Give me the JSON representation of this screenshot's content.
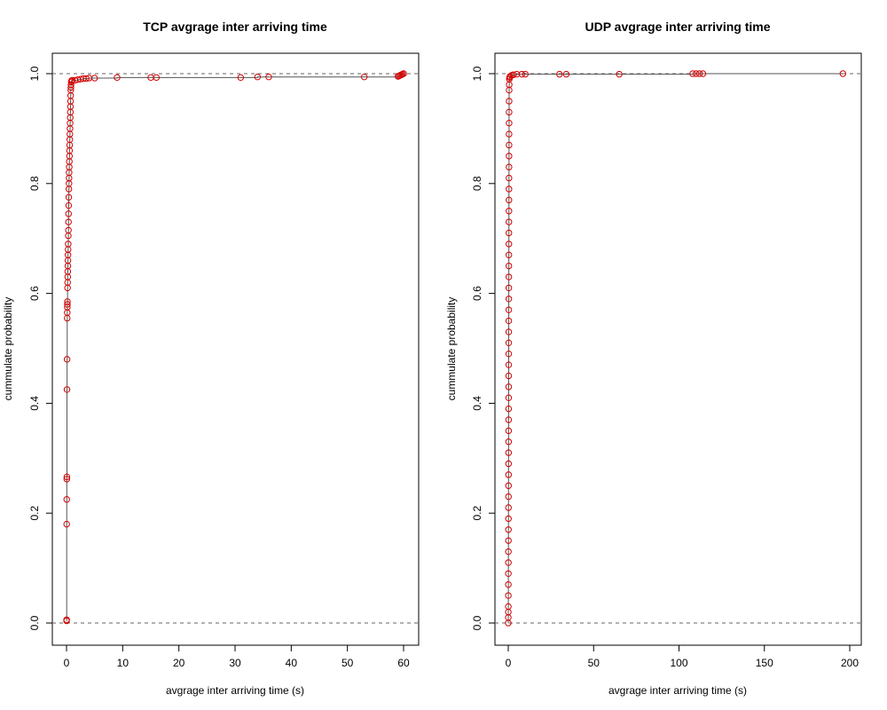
{
  "chart_data": [
    {
      "type": "scatter",
      "title": "TCP avgrage inter arriving time",
      "xlabel": "avgrage inter arriving time (s)",
      "ylabel": "cummulate probability",
      "xlim": [
        0,
        60
      ],
      "ylim": [
        0,
        1
      ],
      "x_ticks": [
        0,
        10,
        20,
        30,
        40,
        50,
        60
      ],
      "y_ticks": [
        0.0,
        0.2,
        0.4,
        0.6,
        0.8,
        1.0
      ],
      "x_tick_labels": [
        "0",
        "10",
        "20",
        "30",
        "40",
        "50",
        "60"
      ],
      "y_tick_labels": [
        "0.0",
        "0.2",
        "0.4",
        "0.6",
        "0.8",
        "1.0"
      ],
      "reference_lines_y": [
        0,
        1
      ],
      "series_color": "#d40000",
      "line_color": "#555555",
      "points": [
        [
          0.01,
          0.004
        ],
        [
          0.02,
          0.006
        ],
        [
          0.03,
          0.18
        ],
        [
          0.04,
          0.225
        ],
        [
          0.05,
          0.262
        ],
        [
          0.06,
          0.266
        ],
        [
          0.08,
          0.425
        ],
        [
          0.1,
          0.48
        ],
        [
          0.12,
          0.555
        ],
        [
          0.13,
          0.565
        ],
        [
          0.14,
          0.575
        ],
        [
          0.15,
          0.58
        ],
        [
          0.16,
          0.585
        ],
        [
          0.18,
          0.61
        ],
        [
          0.2,
          0.62
        ],
        [
          0.21,
          0.63
        ],
        [
          0.22,
          0.64
        ],
        [
          0.24,
          0.65
        ],
        [
          0.25,
          0.66
        ],
        [
          0.26,
          0.67
        ],
        [
          0.28,
          0.68
        ],
        [
          0.3,
          0.69
        ],
        [
          0.32,
          0.705
        ],
        [
          0.34,
          0.715
        ],
        [
          0.35,
          0.73
        ],
        [
          0.36,
          0.745
        ],
        [
          0.38,
          0.76
        ],
        [
          0.4,
          0.775
        ],
        [
          0.42,
          0.79
        ],
        [
          0.44,
          0.8
        ],
        [
          0.45,
          0.81
        ],
        [
          0.46,
          0.82
        ],
        [
          0.48,
          0.83
        ],
        [
          0.5,
          0.84
        ],
        [
          0.52,
          0.85
        ],
        [
          0.54,
          0.86
        ],
        [
          0.56,
          0.87
        ],
        [
          0.58,
          0.88
        ],
        [
          0.6,
          0.89
        ],
        [
          0.62,
          0.9
        ],
        [
          0.64,
          0.91
        ],
        [
          0.66,
          0.92
        ],
        [
          0.68,
          0.93
        ],
        [
          0.7,
          0.94
        ],
        [
          0.72,
          0.95
        ],
        [
          0.74,
          0.96
        ],
        [
          0.76,
          0.97
        ],
        [
          0.78,
          0.975
        ],
        [
          0.8,
          0.98
        ],
        [
          0.85,
          0.985
        ],
        [
          0.9,
          0.987
        ],
        [
          1.0,
          0.988
        ],
        [
          1.5,
          0.988
        ],
        [
          2.0,
          0.989
        ],
        [
          2.5,
          0.99
        ],
        [
          3.0,
          0.991
        ],
        [
          3.5,
          0.991
        ],
        [
          4.0,
          0.992
        ],
        [
          5.0,
          0.992
        ],
        [
          9.0,
          0.993
        ],
        [
          15.0,
          0.993
        ],
        [
          16.0,
          0.993
        ],
        [
          31.0,
          0.993
        ],
        [
          34.0,
          0.994
        ],
        [
          36.0,
          0.994
        ],
        [
          53.0,
          0.994
        ],
        [
          59.0,
          0.995
        ],
        [
          59.2,
          0.996
        ],
        [
          59.4,
          0.997
        ],
        [
          59.6,
          0.998
        ],
        [
          59.8,
          0.999
        ],
        [
          60.0,
          1.0
        ]
      ]
    },
    {
      "type": "scatter",
      "title": "UDP avgrage inter arriving time",
      "xlabel": "avgrage inter arriving time (s)",
      "ylabel": "cummulate probability",
      "xlim": [
        0,
        200
      ],
      "ylim": [
        0,
        1
      ],
      "x_ticks": [
        0,
        50,
        100,
        150,
        200
      ],
      "y_ticks": [
        0.0,
        0.2,
        0.4,
        0.6,
        0.8,
        1.0
      ],
      "x_tick_labels": [
        "0",
        "50",
        "100",
        "150",
        "200"
      ],
      "y_tick_labels": [
        "0.0",
        "0.2",
        "0.4",
        "0.6",
        "0.8",
        "1.0"
      ],
      "reference_lines_y": [
        0,
        1
      ],
      "series_color": "#d40000",
      "line_color": "#555555",
      "points": [
        [
          0.01,
          0.0
        ],
        [
          0.02,
          0.01
        ],
        [
          0.03,
          0.02
        ],
        [
          0.04,
          0.03
        ],
        [
          0.05,
          0.05
        ],
        [
          0.06,
          0.07
        ],
        [
          0.07,
          0.09
        ],
        [
          0.08,
          0.11
        ],
        [
          0.09,
          0.13
        ],
        [
          0.1,
          0.15
        ],
        [
          0.11,
          0.17
        ],
        [
          0.12,
          0.19
        ],
        [
          0.13,
          0.21
        ],
        [
          0.14,
          0.23
        ],
        [
          0.15,
          0.25
        ],
        [
          0.16,
          0.27
        ],
        [
          0.17,
          0.29
        ],
        [
          0.18,
          0.31
        ],
        [
          0.19,
          0.33
        ],
        [
          0.2,
          0.35
        ],
        [
          0.21,
          0.37
        ],
        [
          0.22,
          0.39
        ],
        [
          0.23,
          0.41
        ],
        [
          0.24,
          0.43
        ],
        [
          0.25,
          0.45
        ],
        [
          0.26,
          0.47
        ],
        [
          0.27,
          0.49
        ],
        [
          0.28,
          0.51
        ],
        [
          0.29,
          0.53
        ],
        [
          0.3,
          0.55
        ],
        [
          0.31,
          0.57
        ],
        [
          0.32,
          0.59
        ],
        [
          0.33,
          0.61
        ],
        [
          0.34,
          0.63
        ],
        [
          0.35,
          0.65
        ],
        [
          0.36,
          0.67
        ],
        [
          0.37,
          0.69
        ],
        [
          0.38,
          0.71
        ],
        [
          0.39,
          0.73
        ],
        [
          0.4,
          0.75
        ],
        [
          0.41,
          0.77
        ],
        [
          0.42,
          0.79
        ],
        [
          0.43,
          0.81
        ],
        [
          0.44,
          0.83
        ],
        [
          0.45,
          0.85
        ],
        [
          0.46,
          0.87
        ],
        [
          0.47,
          0.89
        ],
        [
          0.48,
          0.91
        ],
        [
          0.49,
          0.93
        ],
        [
          0.5,
          0.95
        ],
        [
          0.52,
          0.97
        ],
        [
          0.55,
          0.98
        ],
        [
          0.6,
          0.99
        ],
        [
          0.8,
          0.993
        ],
        [
          1.0,
          0.995
        ],
        [
          2.0,
          0.997
        ],
        [
          3.0,
          0.998
        ],
        [
          5.0,
          0.999
        ],
        [
          8.0,
          0.999
        ],
        [
          10.0,
          0.999
        ],
        [
          30.0,
          0.999
        ],
        [
          34.0,
          0.999
        ],
        [
          65.0,
          0.999
        ],
        [
          108.0,
          1.0
        ],
        [
          110.0,
          1.0
        ],
        [
          112.0,
          1.0
        ],
        [
          114.0,
          1.0
        ],
        [
          196.0,
          1.0
        ]
      ]
    }
  ]
}
